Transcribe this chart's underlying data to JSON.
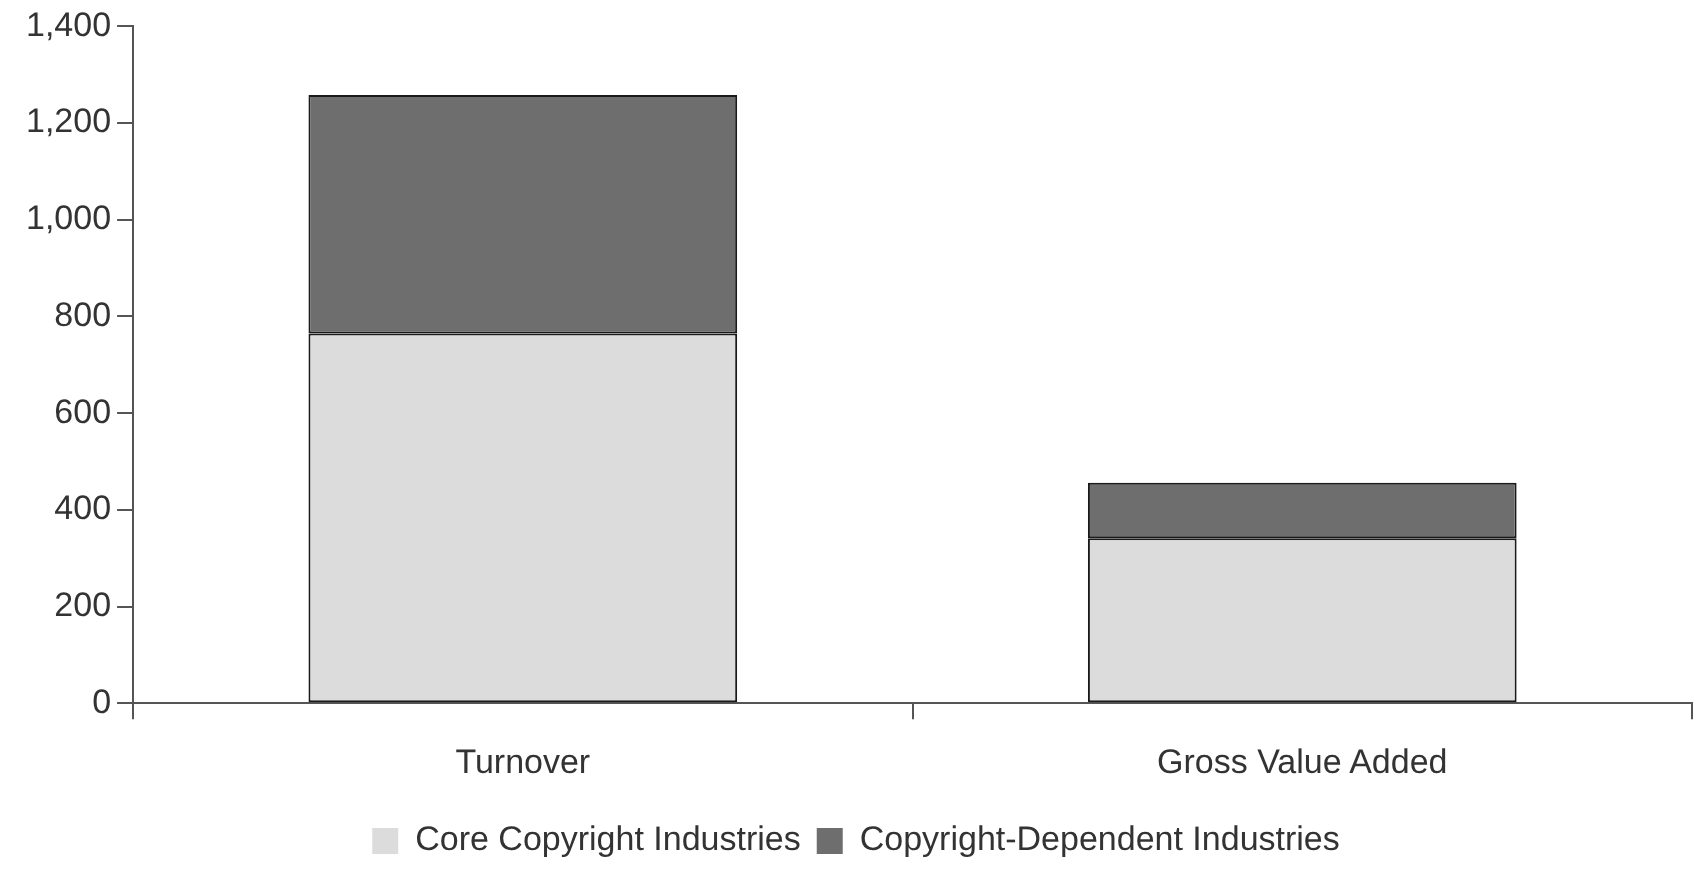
{
  "chart_data": {
    "type": "bar",
    "stacked": true,
    "categories": [
      "Turnover",
      "Gross Value Added"
    ],
    "series": [
      {
        "name": "Core Copyright Industries",
        "color": "#dcdcdc",
        "values": [
          765,
          341
        ]
      },
      {
        "name": "Copyright-Dependent Industries",
        "color": "#6e6e6e",
        "values": [
          493,
          115
        ]
      }
    ],
    "ylim": [
      0,
      1400
    ],
    "yticks": [
      0,
      {
        "value": 200,
        "label": "200"
      },
      {
        "value": 400,
        "label": "400"
      },
      {
        "value": 600,
        "label": "600"
      },
      {
        "value": 800,
        "label": "800"
      },
      {
        "value": 1000,
        "label": "1,000"
      },
      {
        "value": 1200,
        "label": "1,200"
      },
      {
        "value": 1400,
        "label": "1,400"
      }
    ],
    "grid": false,
    "legend": "bottom"
  }
}
